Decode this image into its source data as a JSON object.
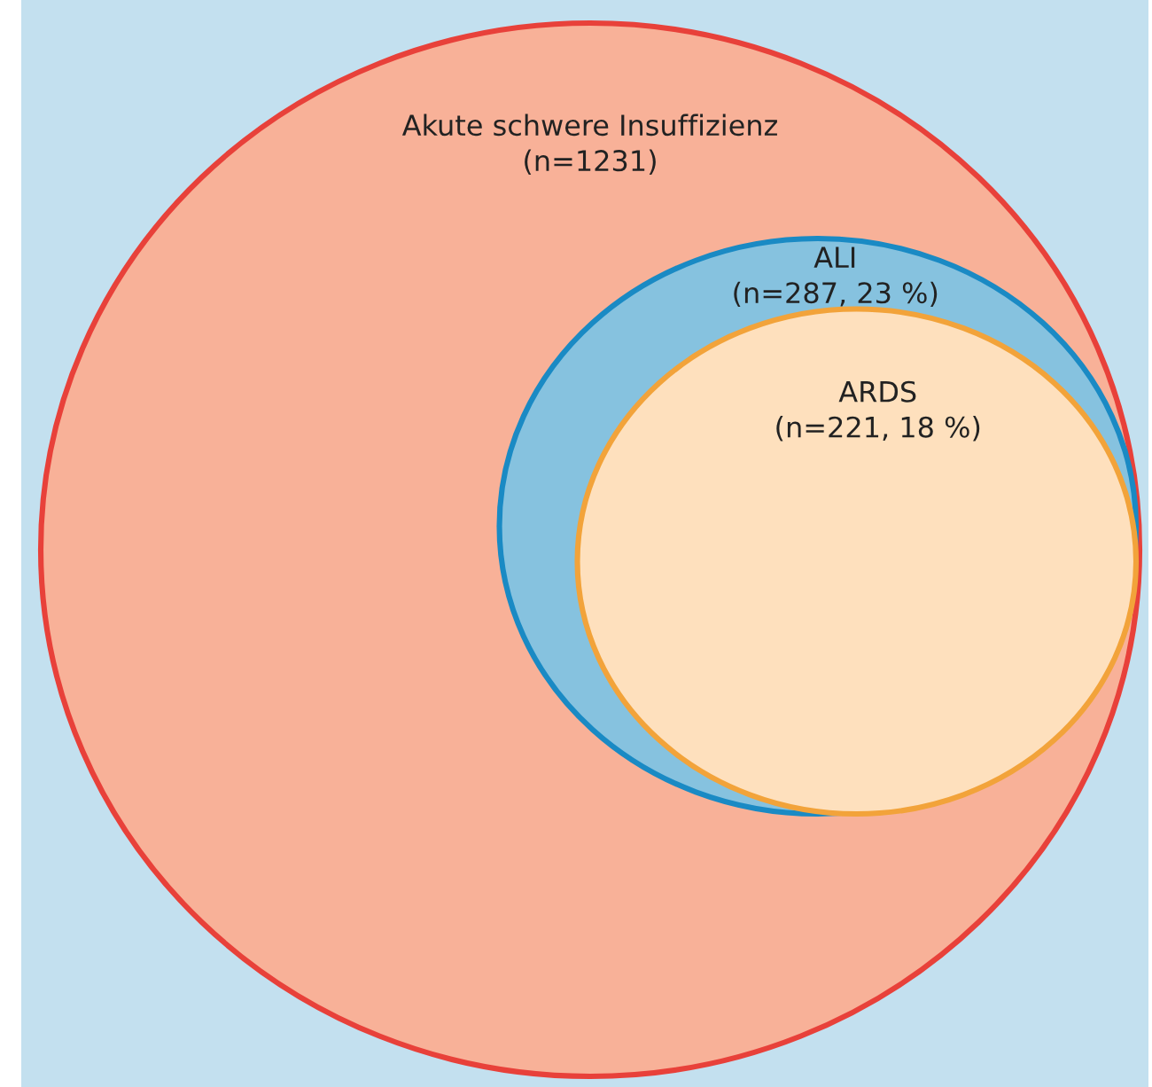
{
  "chart_data": {
    "type": "other",
    "categories": [
      "Akute schwere Insuffizienz",
      "ALI",
      "ARDS"
    ],
    "values": [
      1231,
      287,
      221
    ],
    "value_labels": [
      "(n=1231)",
      "(n=287, 23 %)",
      "(n=221, 18 %)"
    ],
    "colors": [
      "#f8b198",
      "#86c2df",
      "#fee0bd"
    ]
  }
}
